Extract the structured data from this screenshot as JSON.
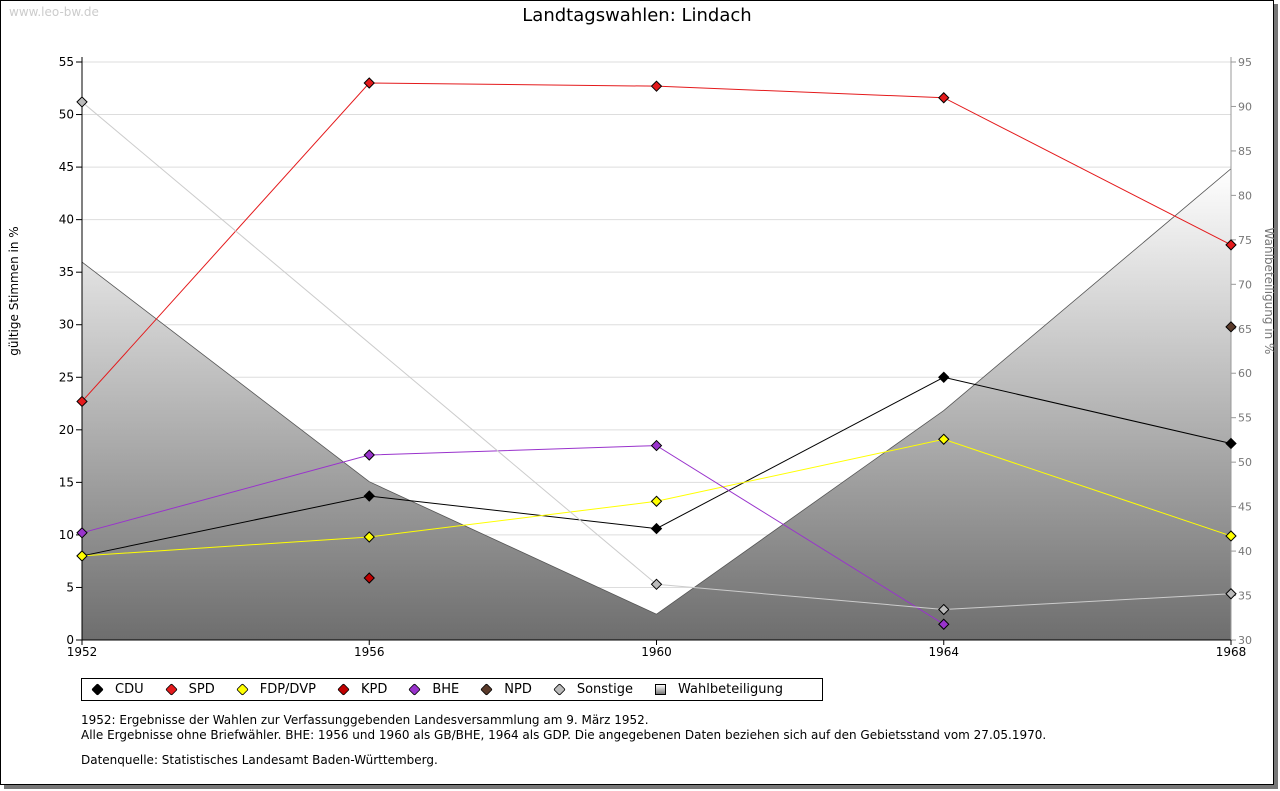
{
  "watermark": "www.leo-bw.de",
  "notes": [
    "1952: Ergebnisse der Wahlen zur Verfassunggebenden Landesversammlung am 9. März 1952.",
    "Alle Ergebnisse ohne Briefwähler. BHE: 1956 und 1960 als GB/BHE, 1964 als GDP. Die angegebenen Daten beziehen sich auf den Gebietsstand vom 27.05.1970.",
    "Datenquelle: Statistisches Landesamt Baden-Württemberg."
  ],
  "chart_data": {
    "type": "line",
    "title": "Landtagswahlen: Lindach",
    "ylabel": "gültige Stimmen in %",
    "y2label": "Wahlbeteiligung in %",
    "ylim": [
      0,
      55
    ],
    "y2lim": [
      30,
      95
    ],
    "yticks": [
      0,
      5,
      10,
      15,
      20,
      25,
      30,
      35,
      40,
      45,
      50,
      55
    ],
    "y2ticks": [
      30,
      35,
      40,
      45,
      50,
      55,
      60,
      65,
      70,
      75,
      80,
      85,
      90,
      95
    ],
    "x": [
      1952,
      1956,
      1960,
      1964,
      1968
    ],
    "grid": true,
    "legend": "bottom",
    "series": [
      {
        "name": "CDU",
        "color": "#000000",
        "values": [
          8.0,
          13.7,
          10.6,
          25.0,
          18.7
        ]
      },
      {
        "name": "SPD",
        "color": "#e41a1c",
        "values": [
          22.7,
          53.0,
          52.7,
          51.6,
          37.6
        ]
      },
      {
        "name": "FDP/DVP",
        "color": "#ffff00",
        "values": [
          8.0,
          9.8,
          13.2,
          19.1,
          9.9
        ]
      },
      {
        "name": "KPD",
        "color": "#c00000",
        "values": [
          null,
          5.9,
          null,
          null,
          null
        ]
      },
      {
        "name": "BHE",
        "color": "#9933cc",
        "values": [
          10.2,
          17.6,
          18.5,
          1.5,
          null
        ]
      },
      {
        "name": "NPD",
        "color": "#5a3a2a",
        "values": [
          null,
          null,
          null,
          null,
          29.8
        ]
      },
      {
        "name": "Sonstige",
        "color": "#bbbbbb",
        "values": [
          51.2,
          null,
          5.3,
          2.9,
          4.4
        ]
      }
    ],
    "turnout": {
      "name": "Wahlbeteiligung",
      "axis": "right",
      "values": [
        72.5,
        47.8,
        32.9,
        55.8,
        83.0
      ]
    }
  }
}
